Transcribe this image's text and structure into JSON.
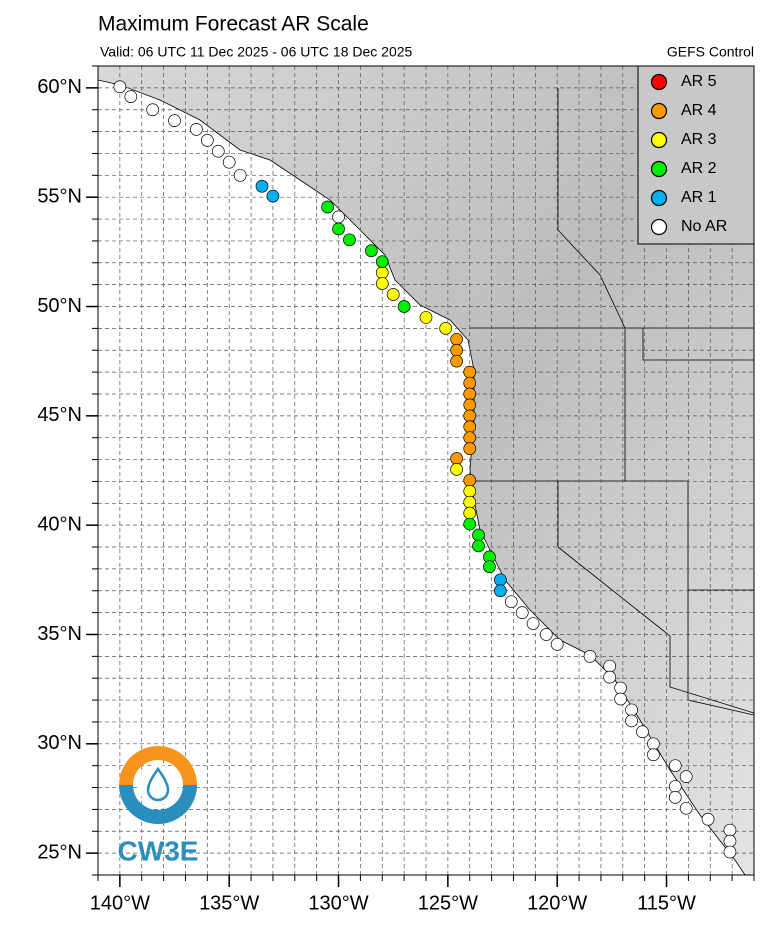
{
  "chart_data": {
    "type": "scatter",
    "title": "Maximum Forecast AR Scale",
    "subtitle": "Valid: 06 UTC 11 Dec 2025 - 06 UTC 18 Dec 2025",
    "model": "GEFS Control",
    "logo_text": "CW3E",
    "xlim": [
      -141,
      -111
    ],
    "ylim": [
      24,
      61
    ],
    "xticks": [
      {
        "value": -140,
        "label": "140°W"
      },
      {
        "value": -135,
        "label": "135°W"
      },
      {
        "value": -130,
        "label": "130°W"
      },
      {
        "value": -125,
        "label": "125°W"
      },
      {
        "value": -120,
        "label": "120°W"
      },
      {
        "value": -115,
        "label": "115°W"
      }
    ],
    "yticks": [
      {
        "value": 25,
        "label": "25°N"
      },
      {
        "value": 30,
        "label": "30°N"
      },
      {
        "value": 35,
        "label": "35°N"
      },
      {
        "value": 40,
        "label": "40°N"
      },
      {
        "value": 45,
        "label": "45°N"
      },
      {
        "value": 50,
        "label": "50°N"
      },
      {
        "value": 55,
        "label": "55°N"
      },
      {
        "value": 60,
        "label": "60°N"
      }
    ],
    "grid": true,
    "grid_step": 1,
    "legend": "upper right",
    "series": [
      {
        "name": "AR 5",
        "color": "#ff0000",
        "x": [],
        "values": []
      },
      {
        "name": "AR 4",
        "color": "#ff9900",
        "x": [
          -124.6,
          -124.6,
          -124.6,
          -124.0,
          -124.0,
          -124.0,
          -124.0,
          -124.0,
          -124.0,
          -124.0,
          -124.0,
          -124.6,
          -124.0
        ],
        "values": [
          48.5,
          48.0,
          47.5,
          47.0,
          46.5,
          46.0,
          45.5,
          45.0,
          44.5,
          44.0,
          43.5,
          43.05,
          42.05
        ]
      },
      {
        "name": "AR 3",
        "color": "#ffff00",
        "x": [
          -128.0,
          -128.0,
          -127.5,
          -126.0,
          -125.1,
          -124.6,
          -124.0,
          -124.0,
          -124.0
        ],
        "values": [
          51.55,
          51.05,
          50.55,
          49.5,
          49.0,
          42.55,
          41.55,
          41.05,
          40.55
        ]
      },
      {
        "name": "AR 2",
        "color": "#00ee00",
        "x": [
          -130.5,
          -130.0,
          -129.5,
          -128.5,
          -128.0,
          -127.0,
          -124.0,
          -123.6,
          -123.6,
          -123.1,
          -123.1
        ],
        "values": [
          54.55,
          53.55,
          53.05,
          52.55,
          52.05,
          50.0,
          40.05,
          39.55,
          39.05,
          38.55,
          38.1
        ]
      },
      {
        "name": "AR 1",
        "color": "#00b0f0",
        "x": [
          -133.5,
          -133.0,
          -122.6,
          -122.6
        ],
        "values": [
          55.5,
          55.05,
          37.5,
          37.0
        ]
      },
      {
        "name": "No AR",
        "color": "#ffffff",
        "x": [
          -140.0,
          -139.5,
          -138.5,
          -137.5,
          -136.5,
          -136.0,
          -135.5,
          -135.0,
          -134.5,
          -130.0,
          -122.1,
          -121.6,
          -121.1,
          -120.5,
          -120.0,
          -118.5,
          -117.6,
          -117.6,
          -117.1,
          -117.1,
          -116.6,
          -116.6,
          -116.1,
          -115.6,
          -115.6,
          -114.6,
          -114.1,
          -114.6,
          -114.6,
          -114.1,
          -113.1,
          -112.1,
          -112.1,
          -112.1
        ],
        "values": [
          60.05,
          59.6,
          59.0,
          58.5,
          58.1,
          57.6,
          57.1,
          56.6,
          56.0,
          54.1,
          36.5,
          36.0,
          35.5,
          35.0,
          34.55,
          34.0,
          33.55,
          33.05,
          32.55,
          32.05,
          31.55,
          31.05,
          30.55,
          30.0,
          29.5,
          29.0,
          28.5,
          28.05,
          27.55,
          27.05,
          26.55,
          26.05,
          25.55,
          25.05
        ]
      }
    ]
  }
}
